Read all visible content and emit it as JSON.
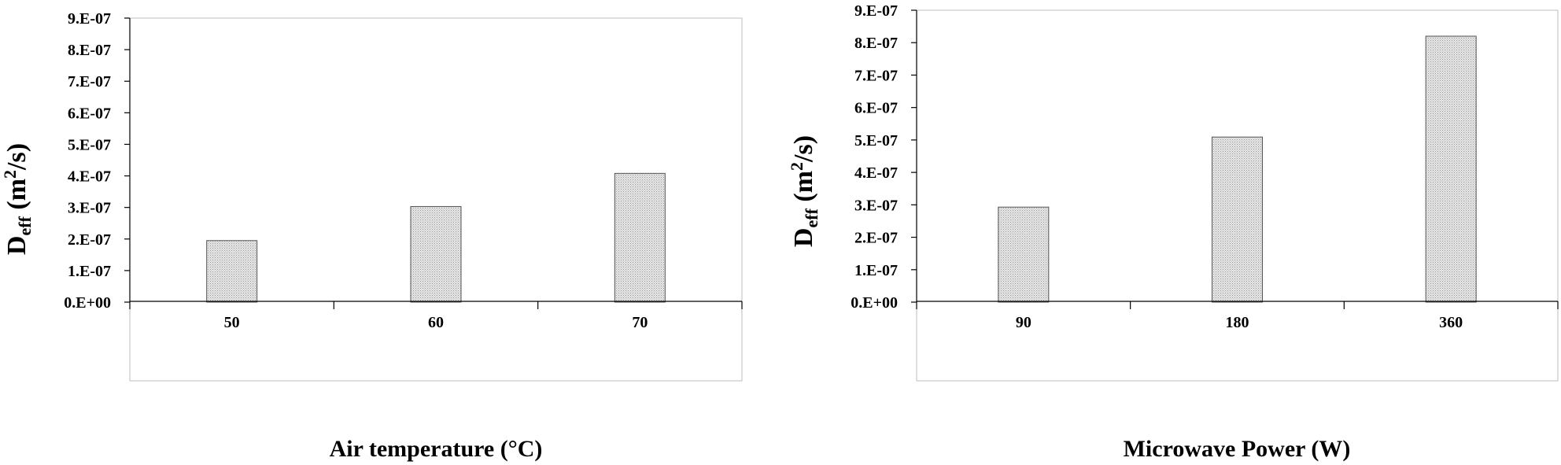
{
  "chart_data": [
    {
      "type": "bar",
      "categories": [
        "50",
        "60",
        "70"
      ],
      "values": [
        1.95e-07,
        3.03e-07,
        4.08e-07
      ],
      "ylim": [
        0,
        9e-07
      ],
      "yticks": [
        "0.E+00",
        "1.E-07",
        "2.E-07",
        "3.E-07",
        "4.E-07",
        "5.E-07",
        "6.E-07",
        "7.E-07",
        "8.E-07",
        "9.E-07"
      ],
      "xlabel": "Air temperature (°C)",
      "ylabel": {
        "main": "D",
        "sub": "eff",
        "unit_open": " (m",
        "sup": "2",
        "unit_close": "/s)"
      },
      "grid": false,
      "bar_fill": "#d8d8d8",
      "bar_pattern": "dotted-hatch"
    },
    {
      "type": "bar",
      "categories": [
        "90",
        "180",
        "360"
      ],
      "values": [
        2.93e-07,
        5.09e-07,
        8.2e-07
      ],
      "ylim": [
        0,
        9e-07
      ],
      "yticks": [
        "0.E+00",
        "1.E-07",
        "2.E-07",
        "3.E-07",
        "4.E-07",
        "5.E-07",
        "6.E-07",
        "7.E-07",
        "8.E-07",
        "9.E-07"
      ],
      "xlabel": "Microwave Power (W)",
      "ylabel": {
        "main": "D",
        "sub": "eff",
        "unit_open": " (m",
        "sup": "2",
        "unit_close": "/s)"
      },
      "grid": false,
      "bar_fill": "#d8d8d8",
      "bar_pattern": "dotted-hatch"
    }
  ]
}
